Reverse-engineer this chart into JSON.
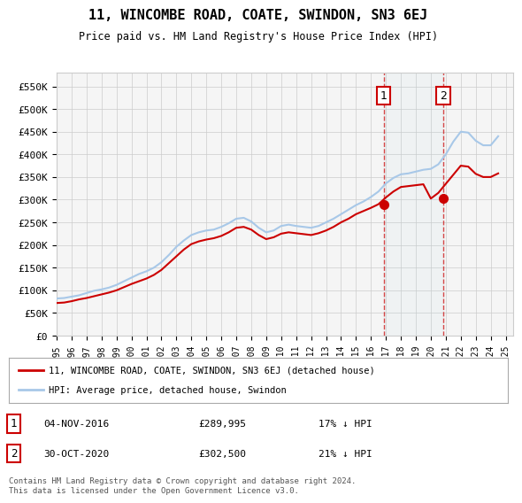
{
  "title": "11, WINCOMBE ROAD, COATE, SWINDON, SN3 6EJ",
  "subtitle": "Price paid vs. HM Land Registry's House Price Index (HPI)",
  "ylabel_ticks": [
    "£0",
    "£50K",
    "£100K",
    "£150K",
    "£200K",
    "£250K",
    "£300K",
    "£350K",
    "£400K",
    "£450K",
    "£500K",
    "£550K"
  ],
  "ytick_values": [
    0,
    50000,
    100000,
    150000,
    200000,
    250000,
    300000,
    350000,
    400000,
    450000,
    500000,
    550000
  ],
  "ylim": [
    0,
    580000
  ],
  "hpi_color": "#a8c8e8",
  "price_color": "#cc0000",
  "sale1_date": "04-NOV-2016",
  "sale1_price": 289995,
  "sale1_label": "1",
  "sale1_hpi_diff": "17% ↓ HPI",
  "sale2_date": "30-OCT-2020",
  "sale2_price": 302500,
  "sale2_label": "2",
  "sale2_hpi_diff": "21% ↓ HPI",
  "legend_line1": "11, WINCOMBE ROAD, COATE, SWINDON, SN3 6EJ (detached house)",
  "legend_line2": "HPI: Average price, detached house, Swindon",
  "footer": "Contains HM Land Registry data © Crown copyright and database right 2024.\nThis data is licensed under the Open Government Licence v3.0.",
  "hpi_data_x": [
    1995,
    1995.5,
    1996,
    1996.5,
    1997,
    1997.5,
    1998,
    1998.5,
    1999,
    1999.5,
    2000,
    2000.5,
    2001,
    2001.5,
    2002,
    2002.5,
    2003,
    2003.5,
    2004,
    2004.5,
    2005,
    2005.5,
    2006,
    2006.5,
    2007,
    2007.5,
    2008,
    2008.5,
    2009,
    2009.5,
    2010,
    2010.5,
    2011,
    2011.5,
    2012,
    2012.5,
    2013,
    2013.5,
    2014,
    2014.5,
    2015,
    2015.5,
    2016,
    2016.5,
    2017,
    2017.5,
    2018,
    2018.5,
    2019,
    2019.5,
    2020,
    2020.5,
    2021,
    2021.5,
    2022,
    2022.5,
    2023,
    2023.5,
    2024,
    2024.5
  ],
  "hpi_data_y": [
    82000,
    83000,
    86000,
    89000,
    94000,
    99000,
    102000,
    106000,
    112000,
    120000,
    128000,
    136000,
    142000,
    150000,
    162000,
    178000,
    196000,
    210000,
    222000,
    228000,
    232000,
    234000,
    240000,
    248000,
    258000,
    260000,
    252000,
    238000,
    228000,
    232000,
    242000,
    245000,
    242000,
    240000,
    238000,
    242000,
    250000,
    258000,
    268000,
    278000,
    288000,
    296000,
    306000,
    318000,
    336000,
    348000,
    356000,
    358000,
    362000,
    366000,
    368000,
    378000,
    400000,
    428000,
    450000,
    448000,
    430000,
    420000,
    420000,
    440000
  ],
  "price_data_x": [
    1995,
    1995.5,
    1996,
    1996.5,
    1997,
    1997.5,
    1998,
    1998.5,
    1999,
    1999.5,
    2000,
    2000.5,
    2001,
    2001.5,
    2002,
    2002.5,
    2003,
    2003.5,
    2004,
    2004.5,
    2005,
    2005.5,
    2006,
    2006.5,
    2007,
    2007.5,
    2008,
    2008.5,
    2009,
    2009.5,
    2010,
    2010.5,
    2011,
    2011.5,
    2012,
    2012.5,
    2013,
    2013.5,
    2014,
    2014.5,
    2015,
    2015.5,
    2016,
    2016.5,
    2017,
    2017.5,
    2018,
    2018.5,
    2019,
    2019.5,
    2020,
    2020.5,
    2021,
    2021.5,
    2022,
    2022.5,
    2023,
    2023.5,
    2024,
    2024.5
  ],
  "price_data_y": [
    72000,
    73000,
    76000,
    80000,
    83000,
    87000,
    91000,
    95000,
    100000,
    107000,
    114000,
    120000,
    126000,
    134000,
    145000,
    160000,
    175000,
    190000,
    202000,
    208000,
    212000,
    215000,
    220000,
    228000,
    238000,
    240000,
    234000,
    222000,
    213000,
    217000,
    225000,
    228000,
    226000,
    224000,
    222000,
    226000,
    232000,
    240000,
    250000,
    258000,
    268000,
    275000,
    282000,
    289995,
    305000,
    318000,
    328000,
    330000,
    332000,
    334000,
    302500,
    315000,
    335000,
    355000,
    375000,
    373000,
    357000,
    350000,
    350000,
    358000
  ],
  "x_tick_years": [
    1995,
    1996,
    1997,
    1998,
    1999,
    2000,
    2001,
    2002,
    2003,
    2004,
    2005,
    2006,
    2007,
    2008,
    2009,
    2010,
    2011,
    2012,
    2013,
    2014,
    2015,
    2016,
    2017,
    2018,
    2019,
    2020,
    2021,
    2022,
    2023,
    2024,
    2025
  ],
  "sale1_x": 2016.85,
  "sale2_x": 2020.83,
  "bg_color": "#ffffff",
  "grid_color": "#cccccc",
  "plot_bg": "#f5f5f5"
}
